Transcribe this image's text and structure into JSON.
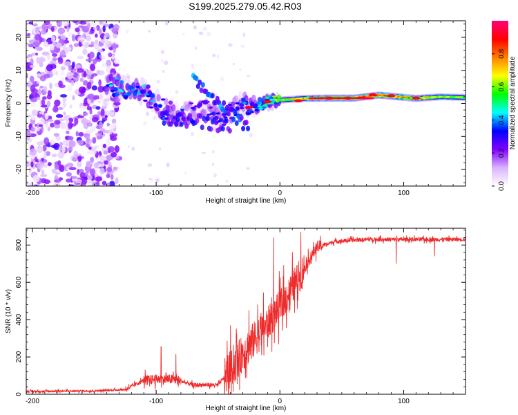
{
  "title": "S199.2025.279.05.42.R03",
  "chart_data": [
    {
      "type": "heatmap",
      "name": "spectrogram",
      "xlabel": "Height of straight line (km)",
      "ylabel": "Frequency (Hz)",
      "xlim": [
        -205,
        150
      ],
      "ylim": [
        -25,
        25
      ],
      "x_ticks": [
        -200,
        -100,
        0,
        100
      ],
      "y_ticks": [
        -20,
        -10,
        0,
        10,
        20
      ],
      "colorbar": {
        "label": "Normalized spectral amplitude",
        "range": [
          0,
          1
        ],
        "ticks": [
          0.0,
          0.2,
          0.4,
          0.6,
          0.8
        ],
        "colors": [
          "#ffffff",
          "#d9b3ff",
          "#8000ff",
          "#0000ff",
          "#00ffff",
          "#00ff00",
          "#ffff00",
          "#ff8000",
          "#ff0000",
          "#ff0080"
        ]
      },
      "ridge": [
        {
          "x": -140,
          "f": 5.2,
          "amp": 0.35
        },
        {
          "x": -125,
          "f": 4.8,
          "amp": 0.45
        },
        {
          "x": -110,
          "f": 3.5,
          "amp": 0.4
        },
        {
          "x": -95,
          "f": -1.5,
          "amp": 0.35
        },
        {
          "x": -80,
          "f": -3.5,
          "amp": 0.3
        },
        {
          "x": -60,
          "f": -2.0,
          "amp": 0.3
        },
        {
          "x": -45,
          "f": -4.5,
          "amp": 0.3
        },
        {
          "x": -30,
          "f": 0.0,
          "amp": 0.35
        },
        {
          "x": -20,
          "f": -1.0,
          "amp": 0.4
        },
        {
          "x": -10,
          "f": 0.5,
          "amp": 0.5
        },
        {
          "x": 0,
          "f": 1.0,
          "amp": 0.6
        },
        {
          "x": 20,
          "f": 1.5,
          "amp": 0.7
        },
        {
          "x": 40,
          "f": 1.6,
          "amp": 0.85
        },
        {
          "x": 60,
          "f": 1.6,
          "amp": 0.85
        },
        {
          "x": 80,
          "f": 2.5,
          "amp": 0.8
        },
        {
          "x": 95,
          "f": 2.0,
          "amp": 0.75
        },
        {
          "x": 110,
          "f": 1.5,
          "amp": 0.75
        },
        {
          "x": 130,
          "f": 2.0,
          "amp": 0.6
        },
        {
          "x": 150,
          "f": 1.8,
          "amp": 0.6
        }
      ]
    },
    {
      "type": "line",
      "name": "snr",
      "xlabel": "Height of straight line (km)",
      "ylabel": "SNR (10 * v/v)",
      "xlim": [
        -205,
        150
      ],
      "ylim": [
        0,
        890
      ],
      "x_ticks": [
        -200,
        -100,
        0,
        100
      ],
      "y_ticks": [
        0,
        200,
        400,
        600,
        800
      ],
      "color": "#ee2a2a",
      "trend": [
        {
          "x": -205,
          "y": 15
        },
        {
          "x": -150,
          "y": 18
        },
        {
          "x": -125,
          "y": 25
        },
        {
          "x": -110,
          "y": 75
        },
        {
          "x": -100,
          "y": 80
        },
        {
          "x": -85,
          "y": 80
        },
        {
          "x": -70,
          "y": 50
        },
        {
          "x": -50,
          "y": 50
        },
        {
          "x": -40,
          "y": 130
        },
        {
          "x": -30,
          "y": 220
        },
        {
          "x": -20,
          "y": 300
        },
        {
          "x": -10,
          "y": 380
        },
        {
          "x": 0,
          "y": 470
        },
        {
          "x": 10,
          "y": 570
        },
        {
          "x": 20,
          "y": 680
        },
        {
          "x": 30,
          "y": 790
        },
        {
          "x": 45,
          "y": 820
        },
        {
          "x": 70,
          "y": 830
        },
        {
          "x": 100,
          "y": 830
        },
        {
          "x": 150,
          "y": 830
        }
      ],
      "noise_segments": [
        {
          "x0": -205,
          "x1": -125,
          "amp": 12
        },
        {
          "x0": -125,
          "x1": -110,
          "amp": 25
        },
        {
          "x0": -110,
          "x1": -80,
          "amp": 60
        },
        {
          "x0": -80,
          "x1": -45,
          "amp": 25
        },
        {
          "x0": -45,
          "x1": -15,
          "amp": 220
        },
        {
          "x0": -15,
          "x1": 20,
          "amp": 200
        },
        {
          "x0": 20,
          "x1": 35,
          "amp": 70
        },
        {
          "x0": 35,
          "x1": 150,
          "amp": 25
        }
      ],
      "spikes": [
        {
          "x": -96,
          "y": 255
        },
        {
          "x": -84,
          "y": 215
        },
        {
          "x": -40,
          "y": 370
        },
        {
          "x": -35,
          "y": 320
        },
        {
          "x": -25,
          "y": 450
        },
        {
          "x": -18,
          "y": 480
        },
        {
          "x": -5,
          "y": 840
        },
        {
          "x": 17,
          "y": 870
        },
        {
          "x": 94,
          "y": 700
        },
        {
          "x": 125,
          "y": 740
        }
      ]
    }
  ]
}
